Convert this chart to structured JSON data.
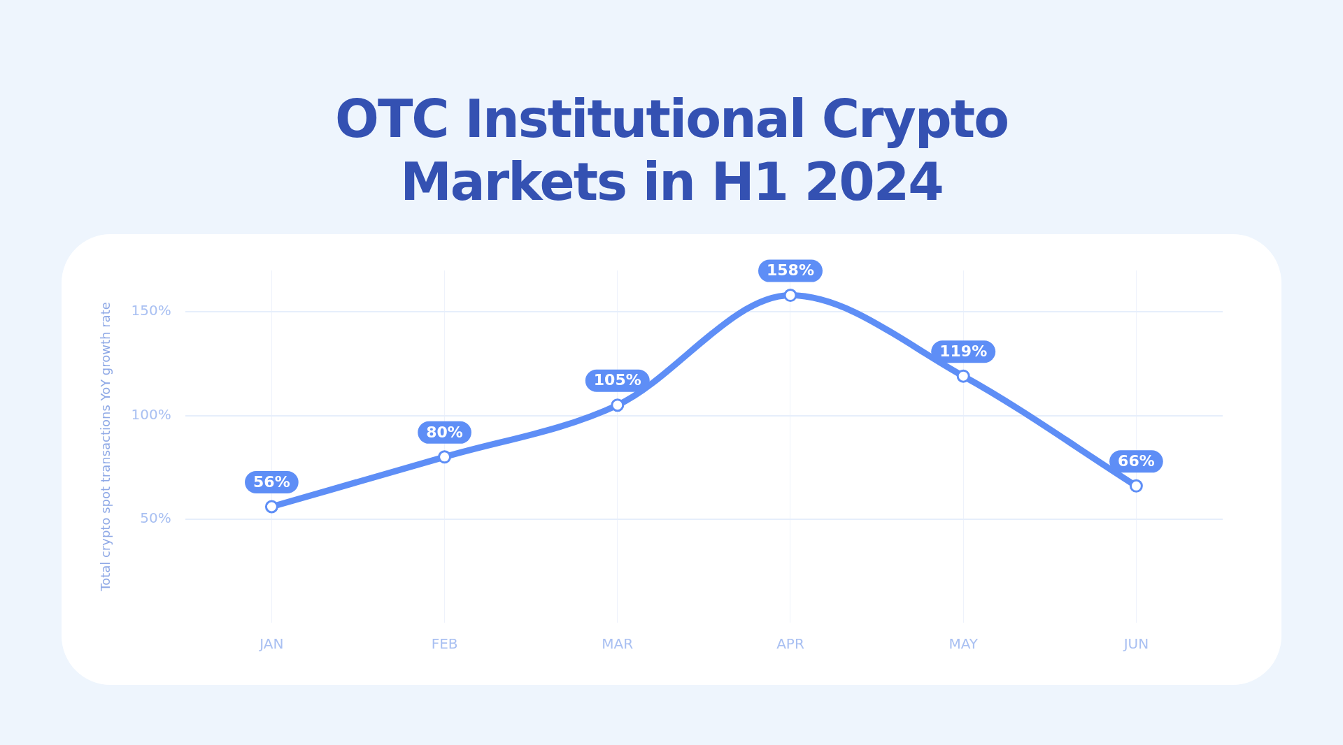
{
  "chart_data": {
    "type": "line",
    "title": "OTC Institutional Crypto Markets in H1 2024",
    "ylabel": "Total crypto spot transactions YoY growth rate",
    "categories": [
      "JAN",
      "FEB",
      "MAR",
      "APR",
      "MAY",
      "JUN"
    ],
    "series": [
      {
        "color": "#5e8ef6",
        "values": [
          56,
          80,
          105,
          158,
          119,
          66
        ]
      }
    ],
    "ylim": [
      0,
      170
    ],
    "yticks": [
      {
        "value": 50,
        "label": "50%"
      },
      {
        "value": 100,
        "label": "100%"
      },
      {
        "value": 150,
        "label": "150%"
      }
    ],
    "grid": true,
    "marker": "circle",
    "legend": false,
    "value_labels": [
      "56%",
      "80%",
      "105%",
      "158%",
      "119%",
      "66%"
    ]
  }
}
